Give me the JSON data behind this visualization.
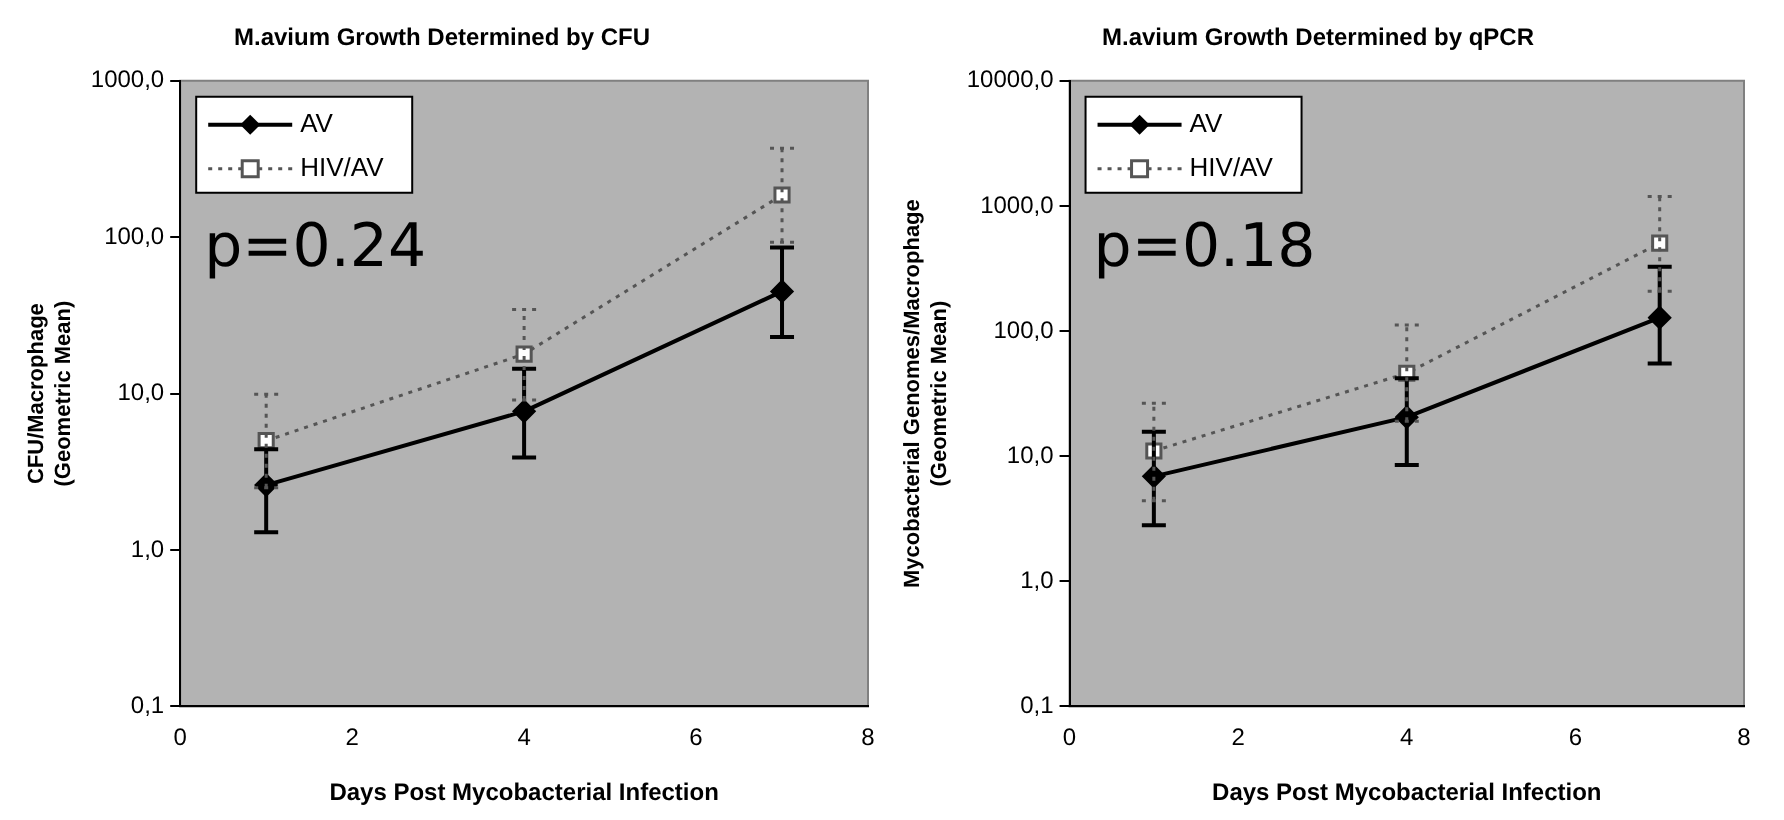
{
  "chart_data": [
    {
      "type": "line",
      "title": "M.avium Growth Determined by CFU",
      "xlabel": "Days Post Mycobacterial Infection",
      "ylabel": "CFU/Macrophage (Geometric Mean)",
      "x": [
        1,
        4,
        7
      ],
      "log": "y",
      "grid": false,
      "legend": "top left",
      "xlim": [
        0,
        8
      ],
      "xticks": [
        0,
        2,
        4,
        6,
        8
      ],
      "ylim": [
        0.1,
        1000
      ],
      "yticks": [
        {
          "value": 0.1,
          "label": "0,1"
        },
        {
          "value": 1,
          "label": "1,0"
        },
        {
          "value": 10,
          "label": "10,0"
        },
        {
          "value": 100,
          "label": "100,0"
        },
        {
          "value": 1000,
          "label": "1000,0"
        }
      ],
      "annotations": [
        "p=0.24"
      ],
      "series": [
        {
          "name": "AV",
          "color": "#000000",
          "marker": "diamond",
          "line_style": "solid",
          "values": [
            2.6,
            7.7,
            45
          ],
          "errors": [
            [
              1.3,
              4.4
            ],
            [
              3.9,
              14.4
            ],
            [
              23,
              86
            ]
          ]
        },
        {
          "name": "HIV/AV",
          "color": "#555555",
          "marker": "square",
          "line_style": "dotted",
          "values": [
            5.0,
            17.9,
            186
          ],
          "errors": [
            [
              2.5,
              9.9
            ],
            [
              9.1,
              34.5
            ],
            [
              93,
              370
            ]
          ]
        }
      ]
    },
    {
      "type": "line",
      "title": "M.avium Growth Determined by qPCR",
      "xlabel": "Days Post Mycobacterial Infection",
      "ylabel": "Mycobacterial Genomes/Macrophage (Geometric Mean)",
      "x": [
        1,
        4,
        7
      ],
      "log": "y",
      "grid": false,
      "legend": "top left",
      "xlim": [
        0,
        8
      ],
      "xticks": [
        0,
        2,
        4,
        6,
        8
      ],
      "ylim": [
        0.1,
        10000
      ],
      "yticks": [
        {
          "value": 0.1,
          "label": "0,1"
        },
        {
          "value": 1,
          "label": "1,0"
        },
        {
          "value": 10,
          "label": "10,0"
        },
        {
          "value": 100,
          "label": "100,0"
        },
        {
          "value": 1000,
          "label": "1000,0"
        },
        {
          "value": 10000,
          "label": "10000,0"
        }
      ],
      "annotations": [
        "p=0.18"
      ],
      "series": [
        {
          "name": "AV",
          "color": "#000000",
          "marker": "diamond",
          "line_style": "solid",
          "values": [
            6.9,
            20.5,
            128
          ],
          "errors": [
            [
              2.8,
              15.7
            ],
            [
              8.5,
              42
            ],
            [
              55,
              326
            ]
          ]
        },
        {
          "name": "HIV/AV",
          "color": "#555555",
          "marker": "square",
          "line_style": "dotted",
          "values": [
            11,
            46,
            504
          ],
          "errors": [
            [
              4.4,
              26.5
            ],
            [
              19,
              112
            ],
            [
              208,
              1187
            ]
          ]
        }
      ]
    }
  ]
}
